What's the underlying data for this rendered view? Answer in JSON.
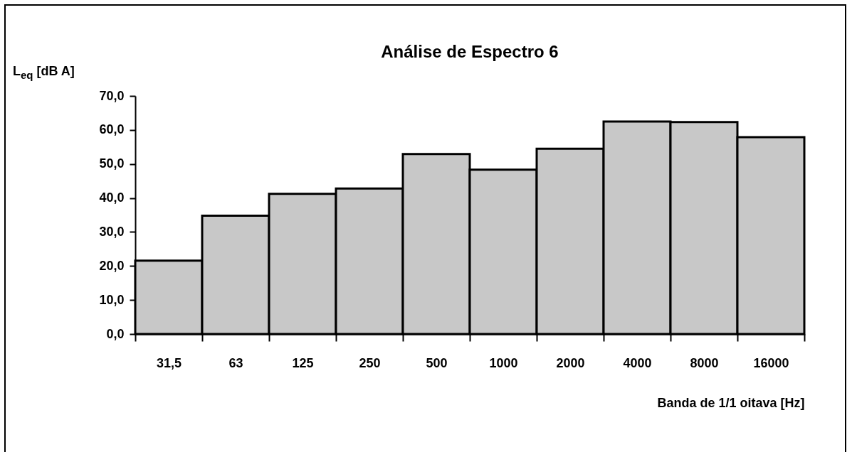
{
  "chart_data": {
    "type": "bar",
    "title": "Análise de Espectro 6",
    "ylabel": "L$_{eq}$ [dB A]",
    "xlabel": "Banda de 1/1 oitava [Hz]",
    "categories": [
      "31,5",
      "63",
      "125",
      "250",
      "500",
      "1000",
      "2000",
      "4000",
      "8000",
      "16000"
    ],
    "values": [
      21.6,
      34.8,
      41.2,
      42.8,
      52.9,
      48.3,
      54.5,
      62.5,
      62.3,
      57.9
    ],
    "color": "#c8c8c8",
    "ylim": [
      0,
      70
    ],
    "yticks": [
      {
        "value": 0,
        "label": "0,0"
      },
      {
        "value": 10,
        "label": "10,0"
      },
      {
        "value": 20,
        "label": "20,0"
      },
      {
        "value": 30,
        "label": "30,0"
      },
      {
        "value": 40,
        "label": "40,0"
      },
      {
        "value": 50,
        "label": "50,0"
      },
      {
        "value": 60,
        "label": "60,0"
      },
      {
        "value": 70,
        "label": "70,0"
      }
    ],
    "grid": false
  }
}
